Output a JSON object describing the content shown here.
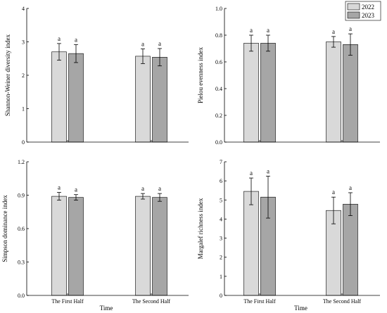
{
  "colors": {
    "y2022": "#d9d9d9",
    "y2023": "#a6a6a6",
    "axis": "#000000"
  },
  "legend": {
    "placement": "top-right",
    "entries": [
      "2022",
      "2023"
    ]
  },
  "chart_data": [
    {
      "type": "bar",
      "ylabel": "Shannon-Weiner diversity index",
      "xlabel": "",
      "categories": [
        "",
        ""
      ],
      "ylim": [
        0,
        4
      ],
      "yticks": [
        "0",
        "1",
        "2",
        "3",
        "4"
      ],
      "series": [
        {
          "name": "2022",
          "values": [
            2.7,
            2.57
          ],
          "errors": [
            0.25,
            0.22
          ],
          "labels": [
            "a",
            "a"
          ]
        },
        {
          "name": "2023",
          "values": [
            2.65,
            2.54
          ],
          "errors": [
            0.27,
            0.26
          ],
          "labels": [
            "a",
            "a"
          ]
        }
      ]
    },
    {
      "type": "bar",
      "ylabel": "Pielou evenness index",
      "xlabel": "",
      "categories": [
        "",
        ""
      ],
      "ylim": [
        0,
        1
      ],
      "yticks": [
        "0.0",
        "0.2",
        "0.4",
        "0.6",
        "0.8",
        "1.0"
      ],
      "series": [
        {
          "name": "2022",
          "values": [
            0.74,
            0.75
          ],
          "errors": [
            0.06,
            0.04
          ],
          "labels": [
            "a",
            "a"
          ]
        },
        {
          "name": "2023",
          "values": [
            0.74,
            0.73
          ],
          "errors": [
            0.06,
            0.08
          ],
          "labels": [
            "a",
            "a"
          ]
        }
      ]
    },
    {
      "type": "bar",
      "ylabel": "Simpson dominance index",
      "xlabel": "Time",
      "categories": [
        "The First Half",
        "The Second Half"
      ],
      "ylim": [
        0,
        1.2
      ],
      "yticks": [
        "0.0",
        "0.3",
        "0.6",
        "0.9",
        "1.2"
      ],
      "series": [
        {
          "name": "2022",
          "values": [
            0.89,
            0.89
          ],
          "errors": [
            0.035,
            0.025
          ],
          "labels": [
            "a",
            "a"
          ]
        },
        {
          "name": "2023",
          "values": [
            0.88,
            0.88
          ],
          "errors": [
            0.025,
            0.035
          ],
          "labels": [
            "a",
            "a"
          ]
        }
      ]
    },
    {
      "type": "bar",
      "ylabel": "Margalef richness index",
      "xlabel": "Time",
      "categories": [
        "The First Half",
        "The Second Half"
      ],
      "ylim": [
        0,
        7
      ],
      "yticks": [
        "0",
        "1",
        "2",
        "3",
        "4",
        "5",
        "6",
        "7"
      ],
      "series": [
        {
          "name": "2022",
          "values": [
            5.45,
            4.45
          ],
          "errors": [
            0.7,
            0.7
          ],
          "labels": [
            "a",
            "a"
          ]
        },
        {
          "name": "2023",
          "values": [
            5.15,
            4.78
          ],
          "errors": [
            1.1,
            0.6
          ],
          "labels": [
            "a",
            "a"
          ]
        }
      ]
    }
  ]
}
